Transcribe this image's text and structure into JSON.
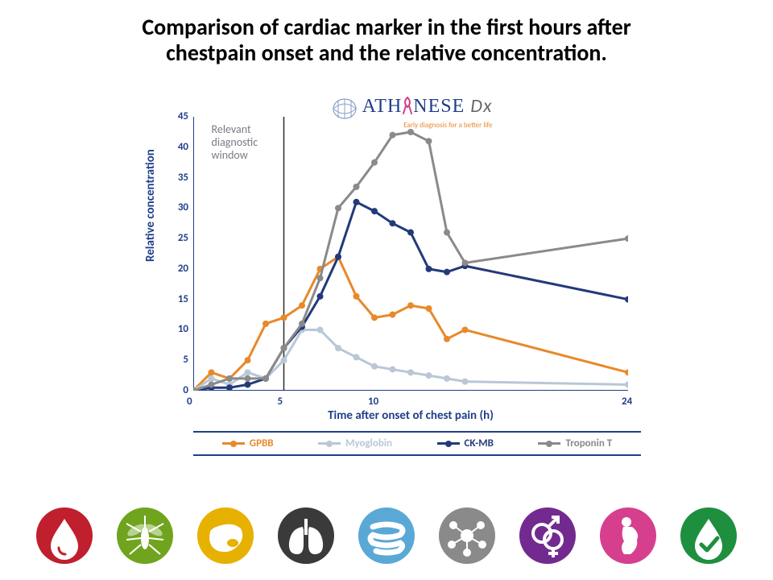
{
  "title_line1": "Comparison of cardiac marker in the first hours after",
  "title_line2": "chestpain onset and the relative concentration.",
  "title_fontsize": 28,
  "logo": {
    "main_pre": "A",
    "main_mid": "TH",
    "main_post": "NESE",
    "dx": "Dx",
    "tagline": "Early diagnosis for a better life",
    "main_color": "#1f3f8a",
    "accent_color": "#d63f8e",
    "dx_color": "#6a6a6a",
    "fontsize": 24
  },
  "chart": {
    "type": "line",
    "xlabel": "Time after onset of chest pain (h)",
    "ylabel": "Relative concentration",
    "label_fontsize": 15,
    "xlim": [
      0,
      24
    ],
    "ylim": [
      0,
      45
    ],
    "xticks": [
      0,
      5,
      10,
      24
    ],
    "yticks": [
      0,
      5,
      10,
      15,
      20,
      25,
      30,
      35,
      40,
      45
    ],
    "axis_color": "#1f3f8a",
    "tick_color": "#1f3f8a",
    "tick_fontsize": 13,
    "diag_window": {
      "x": 5,
      "label_line1": "Relevant",
      "label_line2": "diagnostic",
      "label_line3": "window",
      "line_color": "#2b2b2b"
    },
    "marker_radius": 4,
    "line_width": 3,
    "series": [
      {
        "name": "GPBB",
        "color": "#e8892a",
        "x": [
          0,
          1,
          2,
          3,
          4,
          5,
          6,
          7,
          8,
          9,
          10,
          11,
          12,
          13,
          14,
          15,
          24
        ],
        "y": [
          0,
          3,
          2,
          5,
          11,
          12,
          14,
          20,
          22,
          15.5,
          12,
          12.5,
          14,
          13.5,
          8.5,
          10,
          3
        ]
      },
      {
        "name": "Myoglobin",
        "color": "#b9c7d6",
        "x": [
          0,
          1,
          2,
          3,
          4,
          5,
          6,
          7,
          8,
          9,
          10,
          11,
          12,
          13,
          14,
          15,
          24
        ],
        "y": [
          0,
          2,
          1,
          3,
          2,
          5,
          10,
          10,
          7,
          5.5,
          4,
          3.5,
          3,
          2.5,
          2,
          1.5,
          1
        ]
      },
      {
        "name": "CK-MB",
        "color": "#233a7a",
        "x": [
          0,
          1,
          2,
          3,
          4,
          5,
          6,
          7,
          8,
          9,
          10,
          11,
          12,
          13,
          14,
          15,
          24
        ],
        "y": [
          0,
          0.5,
          0.5,
          1,
          2,
          7,
          10.5,
          15.5,
          22,
          31,
          29.5,
          27.5,
          26,
          20,
          19.5,
          20.5,
          15
        ]
      },
      {
        "name": "Troponin T",
        "color": "#8a8a8a",
        "x": [
          0,
          1,
          2,
          3,
          4,
          5,
          6,
          7,
          8,
          9,
          10,
          11,
          12,
          13,
          14,
          15,
          24
        ],
        "y": [
          0,
          1,
          2,
          2,
          2,
          7,
          11,
          18.5,
          30,
          33.5,
          37.5,
          42,
          42.5,
          41,
          26,
          21,
          25
        ]
      }
    ]
  },
  "icons": [
    {
      "name": "blood-drop-icon",
      "bg": "#c01f2e",
      "glyph": "drop"
    },
    {
      "name": "mosquito-icon",
      "bg": "#70a41f",
      "glyph": "mosquito"
    },
    {
      "name": "liver-icon",
      "bg": "#e6b100",
      "glyph": "liver"
    },
    {
      "name": "lungs-icon",
      "bg": "#3a3a3a",
      "glyph": "lungs"
    },
    {
      "name": "intestine-icon",
      "bg": "#5aa8d6",
      "glyph": "intestine"
    },
    {
      "name": "molecule-icon",
      "bg": "#8a8a8a",
      "glyph": "molecule"
    },
    {
      "name": "gender-icon",
      "bg": "#732a8f",
      "glyph": "gender"
    },
    {
      "name": "pregnancy-icon",
      "bg": "#d63f8e",
      "glyph": "pregnant"
    },
    {
      "name": "check-icon",
      "bg": "#1e8f3e",
      "glyph": "check"
    }
  ]
}
